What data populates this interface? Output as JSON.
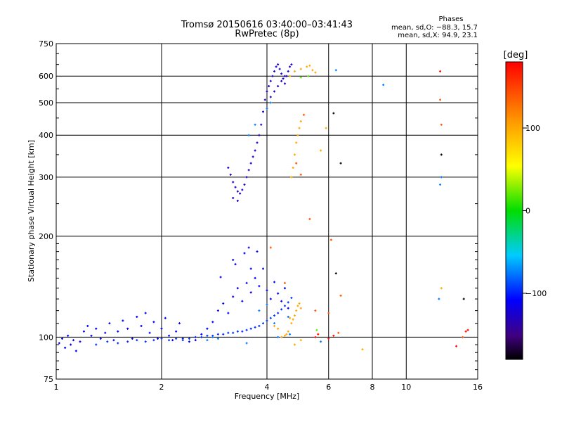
{
  "chart_data": {
    "type": "scatter",
    "title": "Tromsø 20150616 03:40:00–03:41:43",
    "subtitle": "RwPretec (8p)",
    "xlabel": "Frequency [MHz]",
    "ylabel": "Stationary phase Virtual Height [km]",
    "x_scale": "log",
    "y_scale": "log",
    "xlim": [
      1,
      16
    ],
    "ylim": [
      75,
      750
    ],
    "x_ticks": [
      1,
      2,
      4,
      6,
      8,
      10,
      16
    ],
    "x_tick_labels": [
      "1",
      "2",
      "4",
      "6",
      "8",
      "10",
      "16"
    ],
    "y_ticks": [
      75,
      100,
      200,
      300,
      400,
      500,
      600,
      750
    ],
    "y_tick_labels": [
      "75",
      "100",
      "200",
      "300",
      "400",
      "500",
      "600",
      "750"
    ],
    "grid": true,
    "phases_box": {
      "heading": "Phases",
      "line_o": "mean, sd,O: −88.3, 15.7",
      "line_x": "mean, sd,X:  94.9, 23.1"
    },
    "colorbar": {
      "label": "[deg]",
      "min": -180,
      "max": 180,
      "ticks": [
        100,
        0,
        -100
      ],
      "tick_labels": [
        "100",
        "0",
        "−100"
      ]
    },
    "point_groups": [
      {
        "phase": -110,
        "points": [
          [
            1.02,
            96
          ],
          [
            1.04,
            99
          ],
          [
            1.06,
            93
          ],
          [
            1.08,
            101
          ],
          [
            1.1,
            95
          ],
          [
            1.12,
            98
          ],
          [
            1.14,
            91
          ],
          [
            1.17,
            97
          ],
          [
            1.2,
            104
          ],
          [
            1.23,
            108
          ],
          [
            1.26,
            101
          ],
          [
            1.3,
            106
          ],
          [
            1.34,
            99
          ],
          [
            1.38,
            103
          ],
          [
            1.42,
            110
          ],
          [
            1.46,
            98
          ],
          [
            1.5,
            104
          ],
          [
            1.55,
            112
          ],
          [
            1.6,
            106
          ],
          [
            1.65,
            99
          ],
          [
            1.7,
            115
          ],
          [
            1.75,
            108
          ],
          [
            1.8,
            118
          ],
          [
            1.85,
            103
          ],
          [
            1.9,
            111
          ],
          [
            1.95,
            99
          ],
          [
            2.0,
            106
          ],
          [
            2.05,
            114
          ],
          [
            2.1,
            101
          ],
          [
            2.15,
            98
          ],
          [
            2.2,
            104
          ],
          [
            2.25,
            110
          ],
          [
            2.3,
            99
          ],
          [
            2.4,
            97
          ],
          [
            2.5,
            98
          ],
          [
            2.6,
            102
          ],
          [
            2.7,
            106
          ],
          [
            2.8,
            111
          ],
          [
            2.9,
            120
          ],
          [
            3.0,
            126
          ],
          [
            3.1,
            118
          ],
          [
            3.2,
            132
          ],
          [
            3.3,
            140
          ],
          [
            3.4,
            128
          ],
          [
            3.5,
            145
          ],
          [
            3.6,
            136
          ],
          [
            3.7,
            150
          ],
          [
            3.8,
            142
          ],
          [
            3.9,
            160
          ],
          [
            4.0,
            138
          ],
          [
            4.1,
            130
          ],
          [
            4.2,
            146
          ],
          [
            4.3,
            135
          ],
          [
            4.4,
            128
          ],
          [
            4.5,
            140
          ],
          [
            4.6,
            122
          ],
          [
            2.95,
            151
          ],
          [
            3.25,
            165
          ],
          [
            3.45,
            178
          ],
          [
            3.55,
            185
          ],
          [
            3.2,
            170
          ],
          [
            3.6,
            160
          ],
          [
            3.75,
            180
          ]
        ]
      },
      {
        "phase": -95,
        "points": [
          [
            1.3,
            95
          ],
          [
            1.4,
            97
          ],
          [
            1.5,
            96
          ],
          [
            1.6,
            97
          ],
          [
            1.7,
            98
          ],
          [
            1.8,
            97
          ],
          [
            1.9,
            98
          ],
          [
            2.0,
            99
          ],
          [
            2.1,
            98
          ],
          [
            2.2,
            99
          ],
          [
            2.3,
            98
          ],
          [
            2.4,
            99
          ],
          [
            2.5,
            100
          ],
          [
            2.6,
            100
          ],
          [
            2.7,
            101
          ],
          [
            2.8,
            101
          ],
          [
            2.9,
            102
          ],
          [
            3.0,
            102
          ],
          [
            3.1,
            103
          ],
          [
            3.2,
            103
          ],
          [
            3.3,
            104
          ],
          [
            3.4,
            104
          ],
          [
            3.5,
            105
          ],
          [
            3.6,
            106
          ],
          [
            3.7,
            107
          ],
          [
            3.8,
            108
          ],
          [
            3.9,
            110
          ],
          [
            4.0,
            112
          ],
          [
            4.1,
            114
          ],
          [
            4.2,
            116
          ],
          [
            4.3,
            118
          ],
          [
            4.4,
            121
          ],
          [
            4.5,
            124
          ],
          [
            4.6,
            127
          ],
          [
            4.7,
            131
          ]
        ]
      },
      {
        "phase": -125,
        "points": [
          [
            3.1,
            320
          ],
          [
            3.15,
            305
          ],
          [
            3.2,
            290
          ],
          [
            3.25,
            280
          ],
          [
            3.3,
            272
          ],
          [
            3.35,
            268
          ],
          [
            3.4,
            275
          ],
          [
            3.45,
            285
          ],
          [
            3.5,
            300
          ],
          [
            3.55,
            315
          ],
          [
            3.6,
            330
          ],
          [
            3.65,
            345
          ],
          [
            3.7,
            360
          ],
          [
            3.75,
            380
          ],
          [
            3.8,
            400
          ],
          [
            3.85,
            430
          ],
          [
            3.9,
            470
          ],
          [
            3.95,
            510
          ],
          [
            4.0,
            540
          ],
          [
            4.05,
            560
          ],
          [
            4.1,
            580
          ],
          [
            4.15,
            600
          ],
          [
            4.2,
            620
          ],
          [
            4.25,
            640
          ],
          [
            4.3,
            650
          ],
          [
            4.35,
            630
          ],
          [
            4.4,
            610
          ],
          [
            4.45,
            590
          ],
          [
            4.5,
            570
          ],
          [
            4.55,
            600
          ],
          [
            4.6,
            620
          ],
          [
            4.65,
            640
          ],
          [
            4.7,
            650
          ],
          [
            4.1,
            520
          ],
          [
            4.2,
            540
          ],
          [
            4.3,
            560
          ],
          [
            4.4,
            580
          ],
          [
            4.5,
            600
          ],
          [
            3.2,
            260
          ],
          [
            3.3,
            255
          ]
        ]
      },
      {
        "phase": -75,
        "points": [
          [
            2.7,
            98
          ],
          [
            2.8,
            100
          ],
          [
            2.9,
            99
          ],
          [
            3.8,
            120
          ],
          [
            4.0,
            125
          ],
          [
            4.2,
            110
          ],
          [
            4.3,
            100
          ],
          [
            3.5,
            96
          ],
          [
            3.55,
            400
          ],
          [
            3.7,
            430
          ],
          [
            4.0,
            480
          ],
          [
            4.1,
            500
          ],
          [
            4.6,
            115
          ],
          [
            4.65,
            102
          ],
          [
            5.7,
            97
          ],
          [
            6.3,
            625
          ],
          [
            8.6,
            565
          ],
          [
            12.4,
            130
          ],
          [
            12.5,
            285
          ],
          [
            12.6,
            300
          ]
        ]
      },
      {
        "phase": 100,
        "points": [
          [
            4.7,
            110
          ],
          [
            4.75,
            113
          ],
          [
            4.8,
            116
          ],
          [
            4.85,
            120
          ],
          [
            4.9,
            124
          ],
          [
            4.95,
            126
          ],
          [
            5.0,
            122
          ],
          [
            4.6,
            104
          ],
          [
            4.55,
            102
          ],
          [
            4.5,
            101
          ],
          [
            4.65,
            114
          ],
          [
            4.2,
            108
          ],
          [
            4.3,
            106
          ],
          [
            4.4,
            100
          ],
          [
            4.8,
            95
          ],
          [
            5.0,
            98
          ],
          [
            4.7,
            300
          ],
          [
            4.75,
            320
          ],
          [
            4.8,
            350
          ],
          [
            4.85,
            380
          ],
          [
            4.9,
            400
          ],
          [
            4.95,
            420
          ],
          [
            5.0,
            440
          ],
          [
            4.65,
            600
          ],
          [
            4.8,
            620
          ],
          [
            5.0,
            630
          ],
          [
            5.2,
            640
          ],
          [
            5.4,
            625
          ],
          [
            5.5,
            615
          ],
          [
            5.3,
            645
          ],
          [
            5.7,
            360
          ],
          [
            5.9,
            420
          ],
          [
            7.5,
            92
          ],
          [
            12.6,
            140
          ]
        ]
      },
      {
        "phase": 140,
        "points": [
          [
            4.85,
            330
          ],
          [
            5.0,
            305
          ],
          [
            5.1,
            460
          ],
          [
            5.3,
            225
          ],
          [
            5.5,
            120
          ],
          [
            6.0,
            118
          ],
          [
            6.1,
            195
          ],
          [
            6.4,
            103
          ],
          [
            6.5,
            133
          ],
          [
            4.5,
            145
          ],
          [
            4.1,
            185
          ],
          [
            12.5,
            510
          ],
          [
            12.6,
            430
          ],
          [
            14.5,
            100
          ]
        ]
      },
      {
        "phase": 175,
        "points": [
          [
            5.5,
            100
          ],
          [
            5.6,
            102
          ],
          [
            6.0,
            99
          ],
          [
            6.2,
            101
          ],
          [
            13.9,
            94
          ],
          [
            14.8,
            104
          ],
          [
            15.0,
            105
          ],
          [
            12.5,
            620
          ]
        ]
      },
      {
        "phase": -178,
        "points": [
          [
            6.2,
            465
          ],
          [
            6.5,
            330
          ],
          [
            12.6,
            350
          ],
          [
            14.6,
            130
          ],
          [
            6.3,
            155
          ]
        ]
      },
      {
        "phase": 20,
        "points": [
          [
            5.55,
            105
          ],
          [
            5.0,
            595
          ],
          [
            5.25,
            600
          ]
        ]
      }
    ]
  }
}
